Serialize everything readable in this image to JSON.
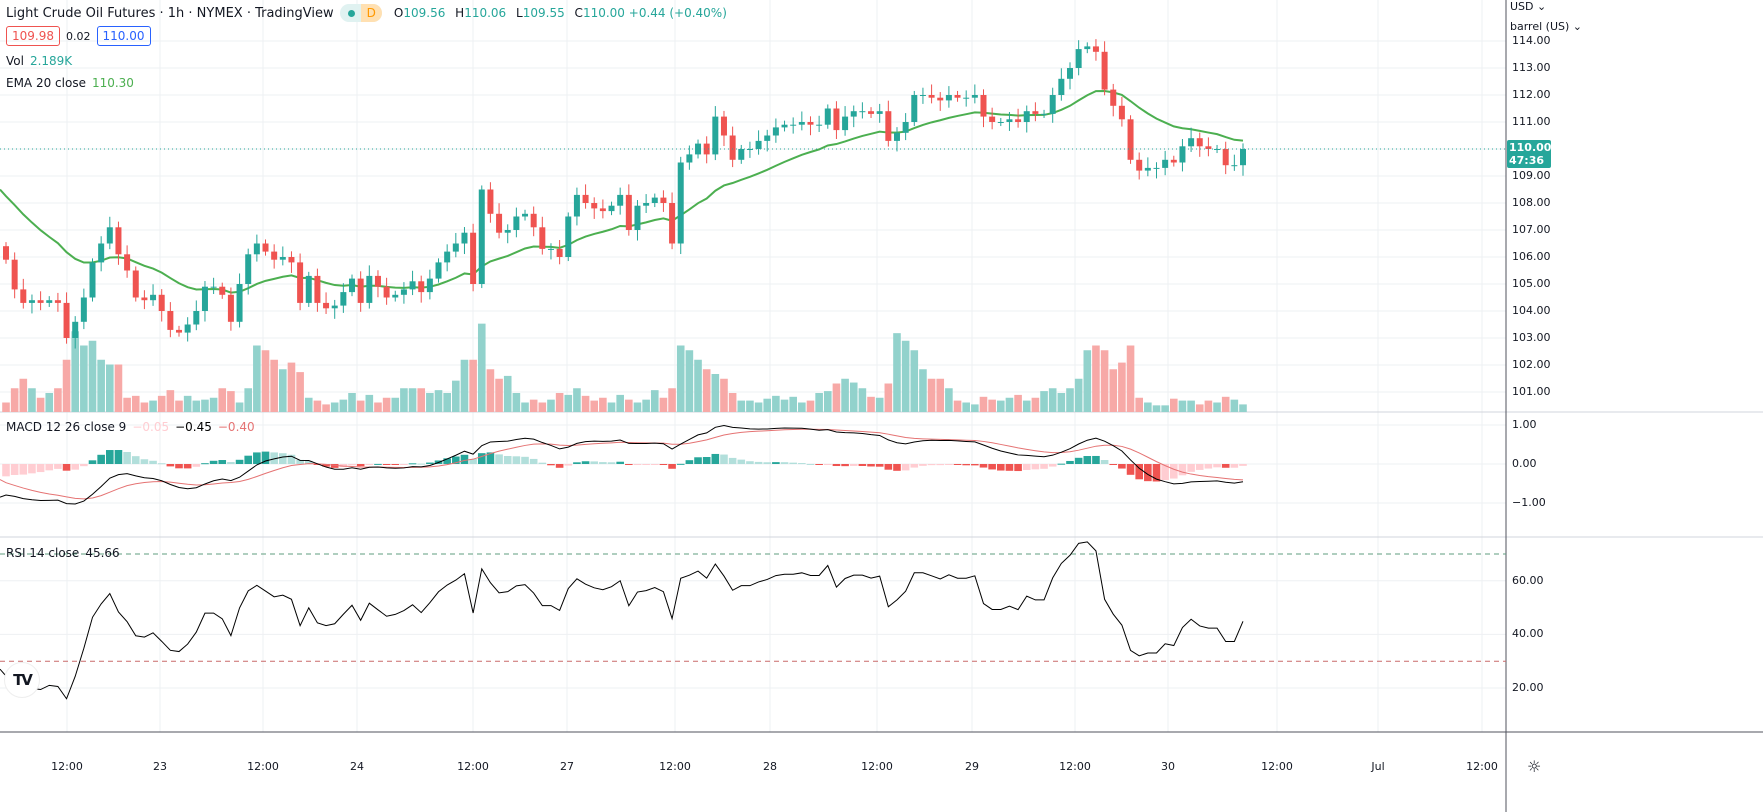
{
  "header": {
    "title": "Light Crude Oil Futures · 1h · NYMEX · TradingView",
    "badge_d": "D",
    "ohlc": {
      "o_label": "O",
      "o": "109.56",
      "h_label": "H",
      "h": "110.06",
      "l_label": "L",
      "l": "109.55",
      "c_label": "C",
      "c": "110.00",
      "change": "+0.44 (+0.40%)"
    },
    "sell_price": "109.98",
    "spread": "0.02",
    "buy_price": "110.00",
    "vol_label": "Vol",
    "vol_value": "2.189K",
    "ema_label": "EMA 20 close",
    "ema_value": "110.30"
  },
  "macd_legend": {
    "label": "MACD 12 26 close 9",
    "hist": "−0.05",
    "macd": "−0.45",
    "signal": "−0.40"
  },
  "rsi_legend": {
    "label": "RSI 14 close",
    "value": "45.66"
  },
  "price_axis": {
    "currency": "USD ⌄",
    "unit": "barrel (US) ⌄",
    "ticks": [
      "114.00",
      "113.00",
      "112.00",
      "111.00",
      "109.00",
      "108.00",
      "107.00",
      "106.00",
      "105.00",
      "104.00",
      "103.00",
      "102.00",
      "101.00"
    ],
    "current": "110.00",
    "countdown": "47:36"
  },
  "macd_axis": {
    "ticks": [
      "1.00",
      "0.00",
      "−1.00"
    ]
  },
  "rsi_axis": {
    "ticks": [
      "60.00",
      "40.00",
      "20.00"
    ]
  },
  "time_axis": {
    "labels": [
      "12:00",
      "23",
      "12:00",
      "24",
      "12:00",
      "27",
      "12:00",
      "28",
      "12:00",
      "29",
      "12:00",
      "30",
      "12:00",
      "Jul",
      "12:00"
    ]
  },
  "colors": {
    "up": "#26a69a",
    "down": "#ef5350",
    "ema": "#4caf50",
    "macd": "#000000",
    "signal": "#e57373"
  },
  "chart_data": {
    "type": "candlestick",
    "interval": "1h",
    "first_open": 106.4,
    "closes": [
      105.9,
      104.8,
      104.3,
      104.4,
      104.3,
      104.4,
      104.3,
      103.0,
      103.6,
      104.5,
      105.8,
      106.5,
      107.1,
      106.1,
      105.5,
      104.5,
      104.4,
      104.6,
      104.0,
      103.3,
      103.2,
      103.5,
      104.0,
      104.9,
      104.9,
      104.6,
      103.6,
      105.0,
      106.1,
      106.5,
      106.2,
      105.9,
      106.0,
      105.8,
      104.3,
      105.3,
      104.3,
      104.1,
      104.2,
      104.7,
      105.2,
      104.3,
      105.3,
      104.9,
      104.5,
      104.6,
      104.8,
      105.1,
      104.7,
      105.2,
      105.8,
      106.2,
      106.5,
      106.9,
      105.0,
      108.5,
      107.6,
      106.9,
      107.0,
      107.5,
      107.6,
      107.1,
      106.3,
      106.3,
      106.0,
      107.5,
      108.3,
      108.0,
      107.8,
      107.7,
      107.9,
      108.3,
      107.0,
      107.9,
      108.0,
      108.2,
      108.0,
      106.5,
      109.5,
      109.8,
      110.2,
      109.8,
      111.2,
      110.5,
      109.6,
      110.0,
      110.0,
      110.3,
      110.5,
      110.8,
      110.9,
      110.9,
      111.0,
      110.9,
      110.9,
      111.5,
      110.7,
      111.2,
      111.4,
      111.4,
      111.3,
      111.4,
      110.3,
      110.6,
      111.0,
      112.0,
      112.0,
      111.9,
      111.8,
      112.0,
      111.9,
      111.9,
      112.0,
      111.2,
      111.0,
      111.0,
      111.1,
      111.0,
      111.4,
      111.3,
      111.3,
      112.0,
      112.6,
      113.0,
      113.7,
      113.8,
      113.6,
      112.2,
      111.6,
      111.1,
      109.6,
      109.2,
      109.3,
      109.3,
      109.6,
      109.5,
      110.1,
      110.4,
      110.1,
      110.0,
      110.0,
      109.4,
      109.4,
      110.0
    ],
    "volume_k": [
      1,
      2.5,
      3.5,
      2.5,
      1.5,
      2,
      2.5,
      5.5,
      8.5,
      7,
      7.5,
      5.5,
      5,
      5,
      1.5,
      1.7,
      1,
      1.2,
      1.7,
      2.3,
      1.2,
      1.7,
      1.2,
      1.3,
      1.5,
      2.5,
      2.2,
      1,
      2.5,
      7,
      6.5,
      5.5,
      4.5,
      5.2,
      4.2,
      1.5,
      1.2,
      0.8,
      1,
      1.3,
      2,
      1.2,
      1.8,
      1,
      1.5,
      1.5,
      2.5,
      2.5,
      2.5,
      2,
      2.3,
      2,
      3.3,
      5.5,
      5.5,
      9.3,
      4.5,
      3.5,
      3.8,
      2,
      1,
      1.3,
      1,
      1.3,
      2,
      1.8,
      2.5,
      1.7,
      1.2,
      1.5,
      1,
      1.8,
      1.3,
      1,
      1.3,
      2.3,
      1.5,
      2.5,
      7,
      6.5,
      5.5,
      4.5,
      4,
      3.5,
      2,
      1.2,
      1.2,
      1,
      1.4,
      1.7,
      1.3,
      1.6,
      1,
      1.2,
      2,
      2.2,
      3,
      3.5,
      3.1,
      2.5,
      1.6,
      1.5,
      3,
      8.3,
      7.5,
      6.5,
      4.5,
      3.5,
      3.5,
      2.5,
      1.2,
      1,
      0.8,
      1.6,
      1.3,
      1.2,
      1.5,
      1.8,
      1.2,
      1.5,
      2.2,
      2.5,
      2,
      2.5,
      3.5,
      6.5,
      7,
      6.5,
      4.5,
      5.2,
      7,
      1.5,
      1,
      0.7,
      0.7,
      1.4,
      1.2,
      1.2,
      0.8,
      1.2,
      1,
      1.6,
      1.3,
      0.8
    ],
    "price_range": [
      100.5,
      114.4
    ],
    "ema": {
      "period": 20,
      "seed": 108.5
    },
    "macd": {
      "fast": 12,
      "slow": 26,
      "signal": 9,
      "fast_seed": 106.0,
      "slow_seed": 106.85,
      "signal_seed": -0.4,
      "range": [
        -1.8,
        1.2
      ]
    },
    "rsi": {
      "period": 14,
      "avg_gain_seed": 0.1,
      "avg_loss_seed": 0.27,
      "upper": 70,
      "lower": 30,
      "range": [
        15,
        78
      ]
    }
  }
}
